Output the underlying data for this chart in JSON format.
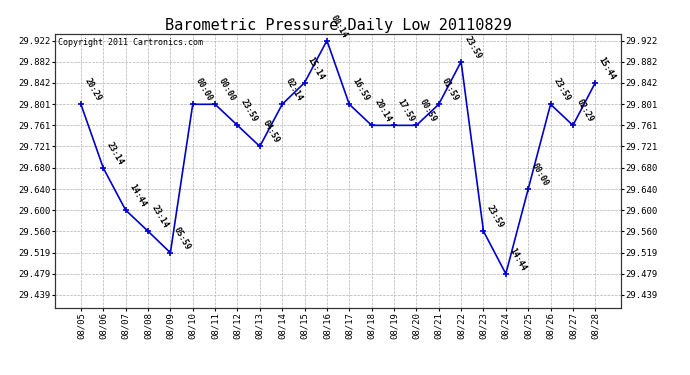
{
  "title": "Barometric Pressure Daily Low 20110829",
  "copyright": "Copyright 2011 Cartronics.com",
  "line_color": "#0000cc",
  "bg_color": "#ffffff",
  "grid_color": "#b0b0b0",
  "dates": [
    "08/05",
    "08/06",
    "08/07",
    "08/08",
    "08/09",
    "08/10",
    "08/11",
    "08/12",
    "08/13",
    "08/14",
    "08/15",
    "08/16",
    "08/17",
    "08/18",
    "08/19",
    "08/20",
    "08/21",
    "08/22",
    "08/23",
    "08/24",
    "08/25",
    "08/26",
    "08/27",
    "08/28"
  ],
  "values": [
    29.801,
    29.68,
    29.6,
    29.56,
    29.519,
    29.801,
    29.801,
    29.761,
    29.721,
    29.801,
    29.842,
    29.922,
    29.801,
    29.761,
    29.761,
    29.761,
    29.801,
    29.882,
    29.56,
    29.479,
    29.64,
    29.801,
    29.761,
    29.842
  ],
  "labels": [
    "20:29",
    "23:14",
    "14:44",
    "23:14",
    "05:59",
    "00:00",
    "00:00",
    "23:59",
    "04:59",
    "02:14",
    "15:14",
    "00:14",
    "16:59",
    "20:14",
    "17:59",
    "00:59",
    "01:59",
    "23:59",
    "23:59",
    "14:44",
    "00:00",
    "23:59",
    "02:29",
    "15:44"
  ],
  "yticks": [
    29.439,
    29.479,
    29.519,
    29.56,
    29.6,
    29.64,
    29.68,
    29.721,
    29.761,
    29.801,
    29.842,
    29.882,
    29.922
  ],
  "ylim": [
    29.415,
    29.935
  ],
  "title_fontsize": 11,
  "label_fontsize": 6.0,
  "tick_fontsize": 6.5,
  "copyright_fontsize": 6.0
}
